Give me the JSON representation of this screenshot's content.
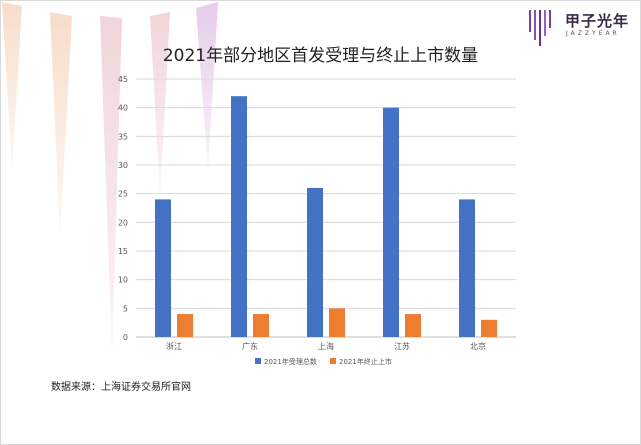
{
  "brand": {
    "name": "甲子光年",
    "sub": "JAZZYEAR",
    "logo_icon": "striped-bars-logo-icon"
  },
  "colors": {
    "series1": "#4472c4",
    "series2": "#ed7d31",
    "gridline": "#d9d9d9",
    "axis_text": "#595959"
  },
  "source_note": "数据来源：上海证券交易所官网",
  "chart_data": {
    "type": "bar",
    "title": "2021年部分地区首发受理与终止上市数量",
    "xlabel": "",
    "ylabel": "",
    "categories": [
      "浙江",
      "广东",
      "上海",
      "江苏",
      "北京"
    ],
    "series": [
      {
        "name": "2021年受理总数",
        "values": [
          24,
          42,
          26,
          40,
          24
        ]
      },
      {
        "name": "2021年终止上市",
        "values": [
          4,
          4,
          5,
          4,
          3
        ]
      }
    ],
    "ylim": [
      0,
      45
    ],
    "yticks": [
      0,
      5,
      10,
      15,
      20,
      25,
      30,
      35,
      40,
      45
    ],
    "grid": true,
    "legend_position": "bottom"
  }
}
